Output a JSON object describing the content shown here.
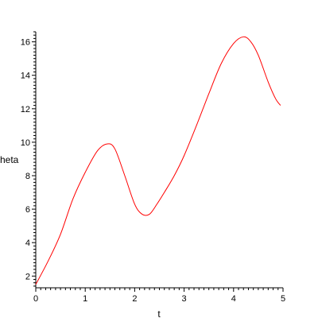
{
  "chart_data": {
    "type": "line",
    "xlabel": "t",
    "ylabel": "theta",
    "xlim": [
      0,
      5
    ],
    "ylim": [
      1.3,
      16.6
    ],
    "x_ticks": [
      0,
      1,
      2,
      3,
      4,
      5
    ],
    "y_ticks": [
      2,
      4,
      6,
      8,
      10,
      12,
      14,
      16
    ],
    "grid": false,
    "line_color": "#ff0000",
    "axis_color": "#000000",
    "series": [
      {
        "x": [
          0,
          0.25,
          0.5,
          0.75,
          1.0,
          1.25,
          1.45,
          1.6,
          1.8,
          2.0,
          2.15,
          2.3,
          2.45,
          2.6,
          2.8,
          3.0,
          3.25,
          3.5,
          3.75,
          4.0,
          4.2,
          4.35,
          4.5,
          4.7,
          4.85,
          4.95
        ],
        "y": [
          1.5,
          2.9,
          4.5,
          6.6,
          8.2,
          9.5,
          9.9,
          9.6,
          8.0,
          6.3,
          5.7,
          5.7,
          6.3,
          7.0,
          8.0,
          9.2,
          11.0,
          12.9,
          14.7,
          15.9,
          16.3,
          16.0,
          15.2,
          13.6,
          12.6,
          12.2
        ]
      }
    ]
  }
}
